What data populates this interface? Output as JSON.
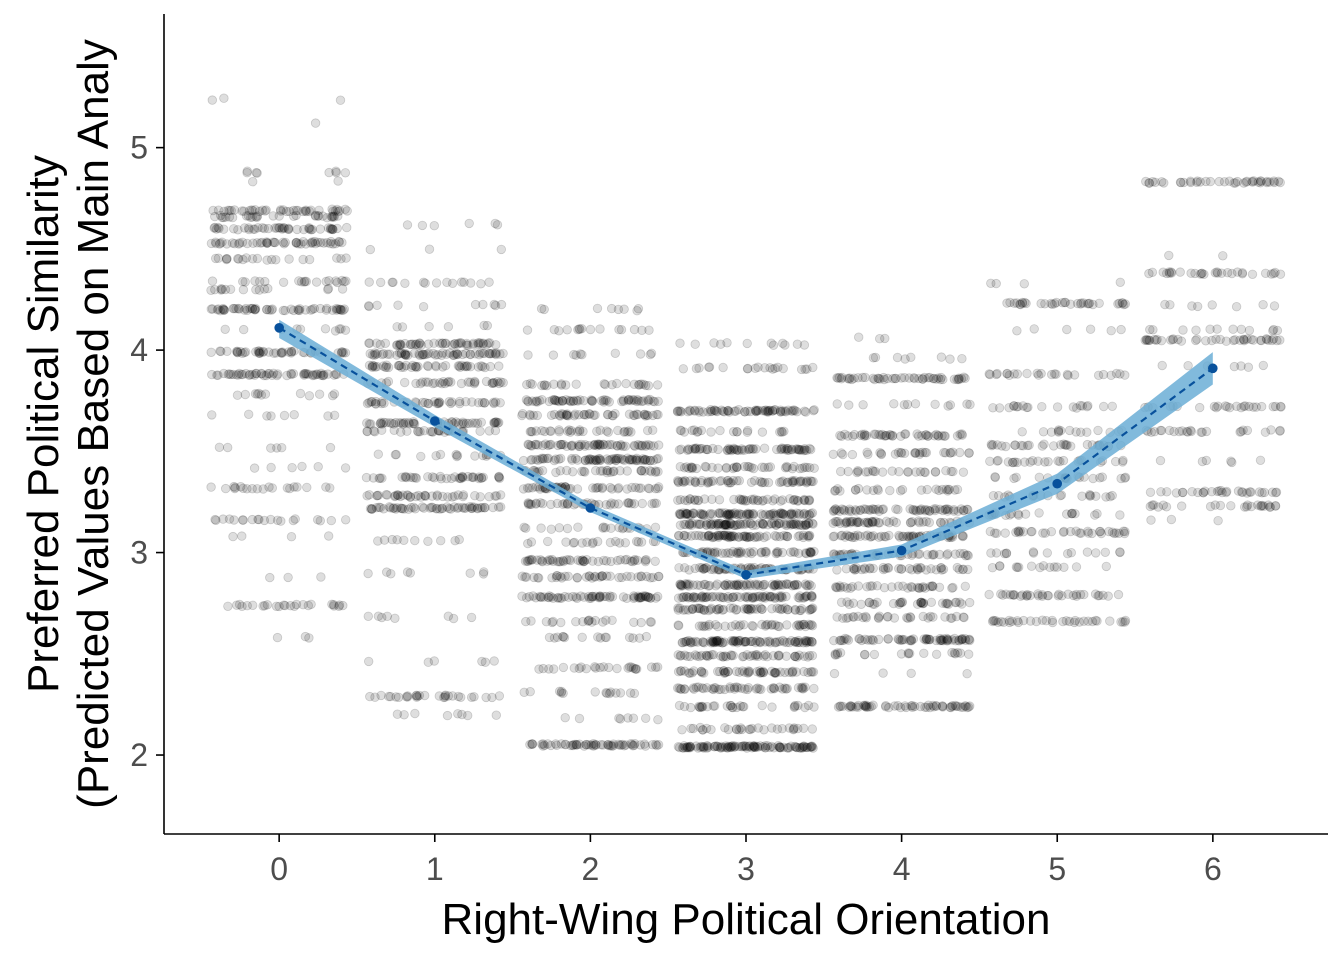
{
  "chart_data": {
    "type": "scatter",
    "title": "",
    "xlabel": "Right-Wing Political Orientation",
    "ylabel_lines": [
      "Preferred Political Similarity",
      "(Predicted Values Based on Main Analy"
    ],
    "x_ticks": [
      "0",
      "1",
      "2",
      "3",
      "4",
      "5",
      "6"
    ],
    "y_ticks": [
      "2",
      "3",
      "4",
      "5"
    ],
    "xlim": [
      -0.74,
      6.74
    ],
    "ylim": [
      1.61,
      5.66
    ],
    "grid": false,
    "legend": "none",
    "point_color": "#000000",
    "line_color": "#08519c",
    "band_color": "#6baed6",
    "jitter_groups": [
      {
        "x": 0,
        "levels": [
          {
            "y": 5.24,
            "n": 3
          },
          {
            "y": 5.12,
            "n": 1
          },
          {
            "y": 4.88,
            "n": 8
          },
          {
            "y": 4.83,
            "n": 2
          },
          {
            "y": 4.69,
            "n": 40
          },
          {
            "y": 4.66,
            "n": 30
          },
          {
            "y": 4.6,
            "n": 45
          },
          {
            "y": 4.53,
            "n": 50
          },
          {
            "y": 4.45,
            "n": 20
          },
          {
            "y": 4.34,
            "n": 20
          },
          {
            "y": 4.3,
            "n": 15
          },
          {
            "y": 4.2,
            "n": 55
          },
          {
            "y": 4.1,
            "n": 10
          },
          {
            "y": 3.99,
            "n": 45
          },
          {
            "y": 3.88,
            "n": 55
          },
          {
            "y": 3.78,
            "n": 12
          },
          {
            "y": 3.68,
            "n": 8
          },
          {
            "y": 3.52,
            "n": 6
          },
          {
            "y": 3.42,
            "n": 6
          },
          {
            "y": 3.32,
            "n": 20
          },
          {
            "y": 3.16,
            "n": 20
          },
          {
            "y": 3.08,
            "n": 4
          },
          {
            "y": 2.88,
            "n": 3
          },
          {
            "y": 2.74,
            "n": 25
          },
          {
            "y": 2.58,
            "n": 3
          }
        ]
      },
      {
        "x": 1,
        "levels": [
          {
            "y": 4.62,
            "n": 6
          },
          {
            "y": 4.5,
            "n": 3
          },
          {
            "y": 4.33,
            "n": 15
          },
          {
            "y": 4.22,
            "n": 10
          },
          {
            "y": 4.12,
            "n": 6
          },
          {
            "y": 4.03,
            "n": 50
          },
          {
            "y": 3.98,
            "n": 60
          },
          {
            "y": 3.92,
            "n": 45
          },
          {
            "y": 3.84,
            "n": 35
          },
          {
            "y": 3.74,
            "n": 40
          },
          {
            "y": 3.64,
            "n": 50
          },
          {
            "y": 3.6,
            "n": 30
          },
          {
            "y": 3.48,
            "n": 15
          },
          {
            "y": 3.37,
            "n": 40
          },
          {
            "y": 3.28,
            "n": 40
          },
          {
            "y": 3.22,
            "n": 55
          },
          {
            "y": 3.06,
            "n": 10
          },
          {
            "y": 2.9,
            "n": 8
          },
          {
            "y": 2.68,
            "n": 8
          },
          {
            "y": 2.46,
            "n": 6
          },
          {
            "y": 2.29,
            "n": 30
          },
          {
            "y": 2.2,
            "n": 8
          }
        ]
      },
      {
        "x": 2,
        "levels": [
          {
            "y": 4.2,
            "n": 8
          },
          {
            "y": 4.1,
            "n": 15
          },
          {
            "y": 3.98,
            "n": 10
          },
          {
            "y": 3.83,
            "n": 25
          },
          {
            "y": 3.75,
            "n": 60
          },
          {
            "y": 3.68,
            "n": 45
          },
          {
            "y": 3.6,
            "n": 30
          },
          {
            "y": 3.53,
            "n": 60
          },
          {
            "y": 3.46,
            "n": 70
          },
          {
            "y": 3.4,
            "n": 35
          },
          {
            "y": 3.32,
            "n": 50
          },
          {
            "y": 3.24,
            "n": 40
          },
          {
            "y": 3.12,
            "n": 20
          },
          {
            "y": 3.05,
            "n": 20
          },
          {
            "y": 2.96,
            "n": 50
          },
          {
            "y": 2.88,
            "n": 40
          },
          {
            "y": 2.78,
            "n": 65
          },
          {
            "y": 2.66,
            "n": 20
          },
          {
            "y": 2.58,
            "n": 15
          },
          {
            "y": 2.43,
            "n": 25
          },
          {
            "y": 2.31,
            "n": 15
          },
          {
            "y": 2.18,
            "n": 8
          },
          {
            "y": 2.05,
            "n": 60
          }
        ]
      },
      {
        "x": 3,
        "levels": [
          {
            "y": 4.03,
            "n": 12
          },
          {
            "y": 3.91,
            "n": 20
          },
          {
            "y": 3.7,
            "n": 70
          },
          {
            "y": 3.6,
            "n": 20
          },
          {
            "y": 3.51,
            "n": 65
          },
          {
            "y": 3.42,
            "n": 40
          },
          {
            "y": 3.35,
            "n": 55
          },
          {
            "y": 3.26,
            "n": 45
          },
          {
            "y": 3.19,
            "n": 90
          },
          {
            "y": 3.14,
            "n": 90
          },
          {
            "y": 3.08,
            "n": 70
          },
          {
            "y": 3.0,
            "n": 55
          },
          {
            "y": 2.92,
            "n": 60
          },
          {
            "y": 2.84,
            "n": 70
          },
          {
            "y": 2.78,
            "n": 75
          },
          {
            "y": 2.72,
            "n": 60
          },
          {
            "y": 2.64,
            "n": 40
          },
          {
            "y": 2.56,
            "n": 90
          },
          {
            "y": 2.49,
            "n": 50
          },
          {
            "y": 2.41,
            "n": 55
          },
          {
            "y": 2.33,
            "n": 50
          },
          {
            "y": 2.24,
            "n": 30
          },
          {
            "y": 2.13,
            "n": 30
          },
          {
            "y": 2.04,
            "n": 110
          }
        ]
      },
      {
        "x": 4,
        "levels": [
          {
            "y": 4.06,
            "n": 3
          },
          {
            "y": 3.96,
            "n": 8
          },
          {
            "y": 3.86,
            "n": 50
          },
          {
            "y": 3.73,
            "n": 12
          },
          {
            "y": 3.58,
            "n": 45
          },
          {
            "y": 3.49,
            "n": 30
          },
          {
            "y": 3.4,
            "n": 25
          },
          {
            "y": 3.31,
            "n": 25
          },
          {
            "y": 3.21,
            "n": 60
          },
          {
            "y": 3.15,
            "n": 50
          },
          {
            "y": 3.08,
            "n": 55
          },
          {
            "y": 2.99,
            "n": 40
          },
          {
            "y": 2.92,
            "n": 40
          },
          {
            "y": 2.83,
            "n": 35
          },
          {
            "y": 2.75,
            "n": 35
          },
          {
            "y": 2.68,
            "n": 30
          },
          {
            "y": 2.57,
            "n": 65
          },
          {
            "y": 2.5,
            "n": 20
          },
          {
            "y": 2.4,
            "n": 4
          },
          {
            "y": 2.24,
            "n": 60
          }
        ]
      },
      {
        "x": 5,
        "levels": [
          {
            "y": 4.33,
            "n": 4
          },
          {
            "y": 4.23,
            "n": 35
          },
          {
            "y": 4.1,
            "n": 6
          },
          {
            "y": 3.88,
            "n": 25
          },
          {
            "y": 3.72,
            "n": 20
          },
          {
            "y": 3.6,
            "n": 15
          },
          {
            "y": 3.53,
            "n": 30
          },
          {
            "y": 3.45,
            "n": 25
          },
          {
            "y": 3.37,
            "n": 20
          },
          {
            "y": 3.28,
            "n": 20
          },
          {
            "y": 3.19,
            "n": 20
          },
          {
            "y": 3.1,
            "n": 35
          },
          {
            "y": 3.0,
            "n": 15
          },
          {
            "y": 2.93,
            "n": 15
          },
          {
            "y": 2.79,
            "n": 35
          },
          {
            "y": 2.66,
            "n": 35
          }
        ]
      },
      {
        "x": 6,
        "levels": [
          {
            "y": 4.83,
            "n": 40
          },
          {
            "y": 4.47,
            "n": 2
          },
          {
            "y": 4.38,
            "n": 30
          },
          {
            "y": 4.22,
            "n": 8
          },
          {
            "y": 4.1,
            "n": 12
          },
          {
            "y": 4.05,
            "n": 40
          },
          {
            "y": 3.92,
            "n": 8
          },
          {
            "y": 3.72,
            "n": 25
          },
          {
            "y": 3.6,
            "n": 25
          },
          {
            "y": 3.45,
            "n": 6
          },
          {
            "y": 3.3,
            "n": 30
          },
          {
            "y": 3.23,
            "n": 25
          },
          {
            "y": 3.16,
            "n": 3
          }
        ]
      }
    ],
    "fit_line": {
      "x": [
        0,
        1,
        2,
        3,
        4,
        5,
        6
      ],
      "y": [
        4.11,
        3.65,
        3.22,
        2.89,
        3.01,
        3.34,
        3.91
      ],
      "ci_lower": [
        4.06,
        3.62,
        3.2,
        2.87,
        2.98,
        3.29,
        3.83
      ],
      "ci_upper": [
        4.15,
        3.68,
        3.24,
        2.91,
        3.04,
        3.39,
        3.99
      ]
    }
  }
}
